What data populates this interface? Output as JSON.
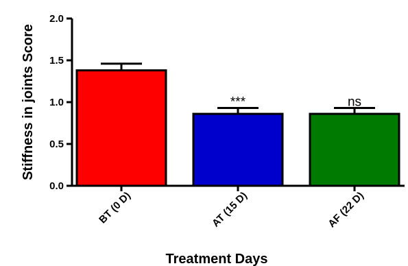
{
  "chart_data": {
    "type": "bar",
    "title": "",
    "xlabel": "Treatment Days",
    "ylabel": "Stiffness in joints Score",
    "categories": [
      "BT (0 D)",
      "AT (15 D)",
      "AF (22 D)"
    ],
    "values": [
      1.38,
      0.86,
      0.86
    ],
    "errors": [
      0.08,
      0.07,
      0.07
    ],
    "annotations": [
      "",
      "***",
      "ns"
    ],
    "colors": [
      "#ff0000",
      "#0000cc",
      "#007a00"
    ],
    "ylim": [
      0,
      2.0
    ],
    "yticks": [
      "0.0",
      "0.5",
      "1.0",
      "1.5",
      "2.0"
    ],
    "grid": false
  }
}
